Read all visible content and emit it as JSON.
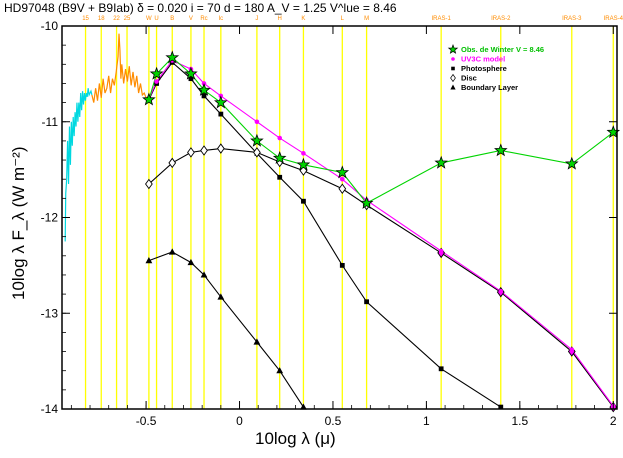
{
  "chart_data": {
    "type": "line",
    "title": "HD97048 (B9V + B9Iab) δ = 0.020 i = 70 d = 180 A_V = 1.25 V^lue = 8.46",
    "xlabel": "10log λ (μ)",
    "ylabel": "10log λ F_λ (W m⁻²)",
    "xlim": [
      -0.95,
      2.02
    ],
    "ylim": [
      -14,
      -10
    ],
    "xticks": [
      {
        "v": -0.5,
        "label": "-0.5"
      },
      {
        "v": 0,
        "label": "0"
      },
      {
        "v": 0.5,
        "label": "0.5"
      },
      {
        "v": 1,
        "label": "1"
      },
      {
        "v": 1.5,
        "label": "1.5"
      },
      {
        "v": 2,
        "label": "2"
      }
    ],
    "yticks": [
      {
        "v": -10,
        "label": "-10"
      },
      {
        "v": -11,
        "label": "-11"
      },
      {
        "v": -12,
        "label": "-12"
      },
      {
        "v": -13,
        "label": "-13"
      },
      {
        "v": -14,
        "label": "-14"
      }
    ],
    "bands": [
      {
        "x": -0.824,
        "label": "15"
      },
      {
        "x": -0.74,
        "label": "18"
      },
      {
        "x": -0.658,
        "label": "22"
      },
      {
        "x": -0.602,
        "label": "25"
      },
      {
        "x": -0.485,
        "label": "W"
      },
      {
        "x": -0.444,
        "label": "U"
      },
      {
        "x": -0.36,
        "label": "B"
      },
      {
        "x": -0.26,
        "label": "V"
      },
      {
        "x": -0.19,
        "label": "Rc"
      },
      {
        "x": -0.1,
        "label": "Ic"
      },
      {
        "x": 0.093,
        "label": "J"
      },
      {
        "x": 0.215,
        "label": "H"
      },
      {
        "x": 0.342,
        "label": "K"
      },
      {
        "x": 0.55,
        "label": "L"
      },
      {
        "x": 0.68,
        "label": "M"
      },
      {
        "x": 1.079,
        "label": "IRAS-1"
      },
      {
        "x": 1.398,
        "label": "IRAS-2"
      },
      {
        "x": 1.778,
        "label": "IRAS-3"
      },
      {
        "x": 2.0,
        "label": "IRAS-4"
      }
    ],
    "series": [
      {
        "name": "Obs. de Winter V = 8.46",
        "color": "#00d400",
        "marker": "star",
        "x": [
          -0.485,
          -0.444,
          -0.36,
          -0.26,
          -0.19,
          -0.1,
          0.093,
          0.215,
          0.342,
          0.55,
          0.68,
          1.079,
          1.398,
          1.778,
          2.0
        ],
        "y": [
          -10.77,
          -10.5,
          -10.33,
          -10.5,
          -10.67,
          -10.8,
          -11.2,
          -11.38,
          -11.45,
          -11.53,
          -11.85,
          -11.43,
          -11.3,
          -11.44,
          -11.11
        ]
      },
      {
        "name": "UV3C model",
        "color": "#ff00ff",
        "marker": "dot",
        "x": [
          -0.485,
          -0.444,
          -0.36,
          -0.26,
          -0.19,
          -0.1,
          0.093,
          0.215,
          0.342,
          0.55,
          0.68,
          1.079,
          1.398,
          1.778,
          2.0
        ],
        "y": [
          -10.76,
          -10.58,
          -10.36,
          -10.45,
          -10.6,
          -10.73,
          -11.0,
          -11.17,
          -11.33,
          -11.6,
          -11.82,
          -12.35,
          -12.77,
          -13.38,
          -13.97
        ]
      },
      {
        "name": "Photosphere",
        "color": "#000000",
        "marker": "square",
        "x": [
          -0.485,
          -0.444,
          -0.36,
          -0.26,
          -0.19,
          -0.1,
          0.093,
          0.215,
          0.342,
          0.55,
          0.68,
          1.079,
          1.398
        ],
        "y": [
          -10.77,
          -10.6,
          -10.38,
          -10.55,
          -10.73,
          -10.92,
          -11.33,
          -11.58,
          -11.83,
          -12.5,
          -12.88,
          -13.58,
          -13.98
        ]
      },
      {
        "name": "Disc",
        "color": "#000000",
        "marker": "diamond",
        "x": [
          -0.485,
          -0.36,
          -0.26,
          -0.19,
          -0.1,
          0.093,
          0.215,
          0.342,
          0.55,
          0.68,
          1.079,
          1.398,
          1.778,
          2.0
        ],
        "y": [
          -11.65,
          -11.43,
          -11.32,
          -11.3,
          -11.28,
          -11.32,
          -11.42,
          -11.51,
          -11.7,
          -11.87,
          -12.37,
          -12.78,
          -13.4,
          -13.98
        ]
      },
      {
        "name": "Boundary Layer",
        "color": "#000000",
        "marker": "triangle",
        "x": [
          -0.485,
          -0.36,
          -0.26,
          -0.19,
          -0.1,
          0.093,
          0.215,
          0.342
        ],
        "y": [
          -12.45,
          -12.36,
          -12.47,
          -12.6,
          -12.83,
          -13.3,
          -13.6,
          -13.98
        ]
      }
    ],
    "spectra": [
      {
        "color": "#00d8e0",
        "x": [
          -0.933,
          -0.93,
          -0.925,
          -0.92,
          -0.915,
          -0.91,
          -0.905,
          -0.9,
          -0.895,
          -0.89,
          -0.885,
          -0.88,
          -0.875,
          -0.87,
          -0.865,
          -0.86,
          -0.855,
          -0.85,
          -0.845,
          -0.84,
          -0.835,
          -0.83,
          -0.825,
          -0.82,
          -0.815,
          -0.81,
          -0.805,
          -0.8,
          -0.795,
          -0.79
        ],
        "y": [
          -12.25,
          -11.75,
          -11.6,
          -11.2,
          -11.65,
          -11.05,
          -11.45,
          -11.0,
          -11.25,
          -10.95,
          -11.15,
          -10.9,
          -11.05,
          -10.8,
          -11.0,
          -10.8,
          -10.95,
          -10.7,
          -10.88,
          -10.68,
          -10.82,
          -10.7,
          -10.78,
          -10.7,
          -10.74,
          -10.65,
          -10.72,
          -10.7,
          -10.68,
          -10.72
        ]
      },
      {
        "color": "#ff8c00",
        "x": [
          -0.79,
          -0.78,
          -0.77,
          -0.76,
          -0.75,
          -0.74,
          -0.73,
          -0.72,
          -0.71,
          -0.7,
          -0.69,
          -0.68,
          -0.67,
          -0.66,
          -0.65,
          -0.645,
          -0.64,
          -0.635,
          -0.63,
          -0.62,
          -0.61,
          -0.6,
          -0.59,
          -0.58,
          -0.57,
          -0.56,
          -0.55,
          -0.54,
          -0.53,
          -0.52,
          -0.51,
          -0.5
        ],
        "y": [
          -10.72,
          -10.8,
          -10.65,
          -10.78,
          -10.6,
          -10.75,
          -10.55,
          -10.7,
          -10.65,
          -10.52,
          -10.7,
          -10.55,
          -10.62,
          -10.48,
          -10.32,
          -10.08,
          -10.25,
          -10.55,
          -10.4,
          -10.6,
          -10.45,
          -10.58,
          -10.42,
          -10.62,
          -10.48,
          -10.64,
          -10.52,
          -10.7,
          -10.6,
          -10.72,
          -10.7,
          -10.75
        ]
      }
    ],
    "legend": "top-right",
    "grid": false
  }
}
